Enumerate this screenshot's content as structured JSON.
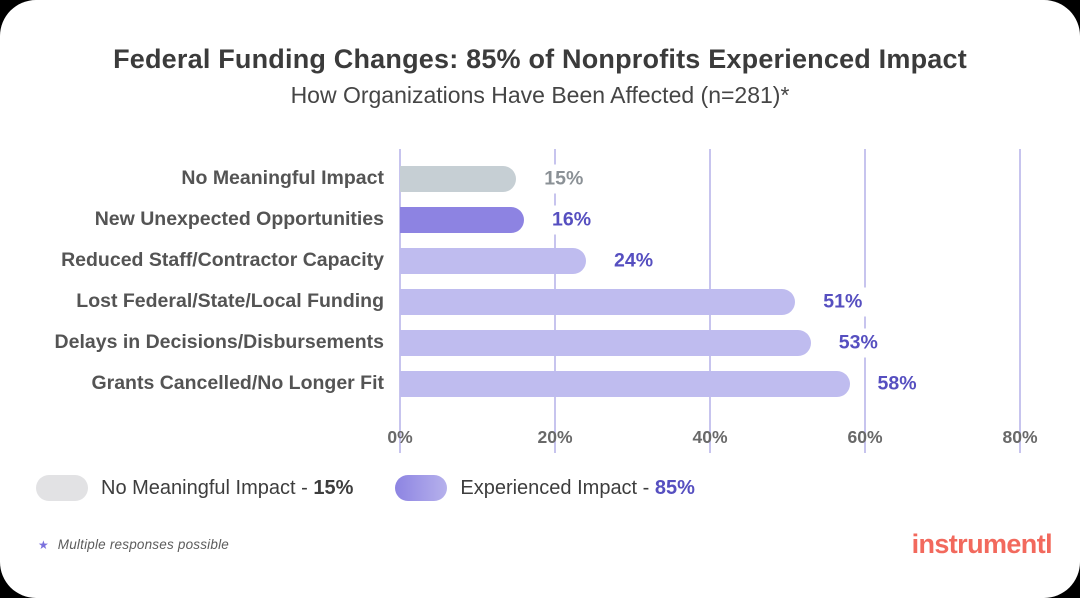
{
  "header": {
    "title": "Federal Funding Changes: 85% of Nonprofits Experienced Impact",
    "subtitle": "How Organizations Have Been Affected (n=281)*"
  },
  "chart_data": {
    "type": "bar",
    "orientation": "horizontal",
    "title": "Federal Funding Changes: 85% of Nonprofits Experienced Impact",
    "subtitle": "How Organizations Have Been Affected (n=281)*",
    "categories": [
      "No Meaningful Impact",
      "New Unexpected Opportunities",
      "Reduced Staff/Contractor Capacity",
      "Lost Federal/State/Local Funding",
      "Delays in Decisions/Disbursements",
      "Grants Cancelled/No Longer Fit"
    ],
    "values": [
      15,
      16,
      24,
      51,
      53,
      58
    ],
    "value_labels": [
      "15%",
      "16%",
      "24%",
      "51%",
      "53%",
      "58%"
    ],
    "bar_colors": [
      "#c6cfd4",
      "#8d83e2",
      "#bfbcef",
      "#bfbcef",
      "#bfbcef",
      "#bfbcef"
    ],
    "value_label_colors": [
      "#8b9196",
      "#564fc0",
      "#564fc0",
      "#564fc0",
      "#564fc0",
      "#564fc0"
    ],
    "xlim": [
      0,
      80
    ],
    "x_tick_values": [
      0,
      20,
      40,
      60,
      80
    ],
    "x_tick_labels": [
      "0%",
      "20%",
      "40%",
      "60%",
      "80%"
    ],
    "grid": "vertical",
    "gridline_color": "#c7c4ee"
  },
  "legend": {
    "items": [
      {
        "label": "No Meaningful Impact - ",
        "value": "15%",
        "value_color": "#3d3d3d",
        "swatch_color": "#e2e2e4",
        "swatch_color2": "#e2e2e4"
      },
      {
        "label": "Experienced Impact - ",
        "value": "85%",
        "value_color": "#564fc0",
        "swatch_color": "#8d84e2",
        "swatch_color2": "#b6b1ec"
      }
    ]
  },
  "footer": {
    "footnote_star": "★",
    "footnote": "Multiple responses possible",
    "logo": "instrumentl"
  }
}
